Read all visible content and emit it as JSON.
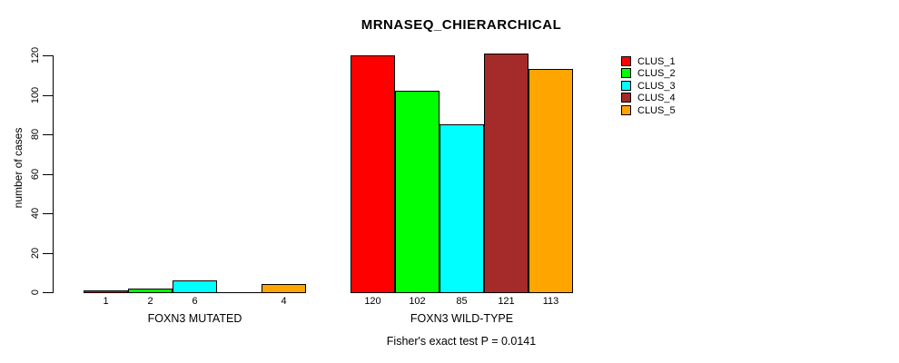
{
  "chart_data": {
    "type": "bar",
    "title": "MRNASEQ_CHIERARCHICAL",
    "ylabel": "number of cases",
    "xlabel": "",
    "ylim": [
      0,
      120
    ],
    "yticks": [
      0,
      20,
      40,
      60,
      80,
      100,
      120
    ],
    "grid": false,
    "legend_position": "right",
    "categories": [
      "FOXN3 MUTATED",
      "FOXN3 WILD-TYPE"
    ],
    "series": [
      {
        "name": "CLUS_1",
        "color": "#ff0000",
        "values": [
          1,
          120
        ]
      },
      {
        "name": "CLUS_2",
        "color": "#00ff00",
        "values": [
          2,
          102
        ]
      },
      {
        "name": "CLUS_3",
        "color": "#00ffff",
        "values": [
          6,
          85
        ]
      },
      {
        "name": "CLUS_4",
        "color": "#a52a2a",
        "values": [
          0,
          121
        ]
      },
      {
        "name": "CLUS_5",
        "color": "#ffa500",
        "values": [
          4,
          113
        ]
      }
    ],
    "bar_labels": [
      [
        "1",
        "2",
        "6",
        "",
        "4"
      ],
      [
        "120",
        "102",
        "85",
        "121",
        "113"
      ]
    ],
    "annotation": "Fisher's exact test P = 0.0141"
  }
}
